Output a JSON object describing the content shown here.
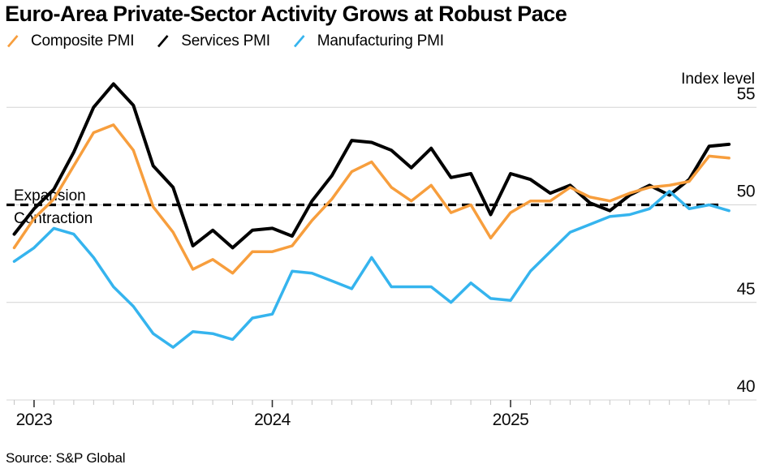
{
  "title": "Euro-Area Private-Sector Activity Grows at Robust Pace",
  "legend": {
    "items": [
      {
        "label": "Composite PMI",
        "color": "#F79E3D"
      },
      {
        "label": "Services PMI",
        "color": "#000000"
      },
      {
        "label": "Manufacturing PMI",
        "color": "#35B4EE"
      }
    ]
  },
  "source": "Source: S&P Global",
  "chart_data": {
    "type": "line",
    "title": "Euro-Area Private-Sector Activity Grows at Robust Pace",
    "xlabel": "",
    "ylabel": "Index level",
    "y_ticks": [
      55,
      50,
      45,
      40
    ],
    "ylim": [
      40,
      57.3
    ],
    "grid": "horizontal",
    "legend_position": "top",
    "x_tick_labels": [
      "2023",
      "2024",
      "2025"
    ],
    "reference_line": {
      "value": 50,
      "style": "dashed",
      "color": "#000000",
      "label_above": "Expansion",
      "label_below": "Contraction"
    },
    "months": [
      "2022-11",
      "2022-12",
      "2023-01",
      "2023-02",
      "2023-03",
      "2023-04",
      "2023-05",
      "2023-06",
      "2023-07",
      "2023-08",
      "2023-09",
      "2023-10",
      "2023-11",
      "2023-12",
      "2024-01",
      "2024-02",
      "2024-03",
      "2024-04",
      "2024-05",
      "2024-06",
      "2024-07",
      "2024-08",
      "2024-09",
      "2024-10",
      "2024-11",
      "2024-12",
      "2025-01",
      "2025-02",
      "2025-03",
      "2025-04",
      "2025-05",
      "2025-06",
      "2025-07",
      "2025-08",
      "2025-09",
      "2025-10",
      "2025-11"
    ],
    "series": [
      {
        "name": "Services PMI",
        "color": "#000000",
        "values": [
          48.5,
          49.8,
          50.8,
          52.7,
          55.0,
          56.2,
          55.1,
          52.0,
          50.9,
          47.9,
          48.7,
          47.8,
          48.7,
          48.8,
          48.4,
          50.2,
          51.5,
          53.3,
          53.2,
          52.8,
          51.9,
          52.9,
          51.4,
          51.6,
          49.5,
          51.6,
          51.3,
          50.6,
          51.0,
          50.1,
          49.7,
          50.5,
          51.0,
          50.5,
          51.3,
          53.0,
          53.1
        ]
      },
      {
        "name": "Composite PMI",
        "color": "#F79E3D",
        "values": [
          47.8,
          49.3,
          50.3,
          52.0,
          53.7,
          54.1,
          52.8,
          49.9,
          48.6,
          46.7,
          47.2,
          46.5,
          47.6,
          47.6,
          47.9,
          49.2,
          50.3,
          51.7,
          52.2,
          50.9,
          50.2,
          51.0,
          49.6,
          50.0,
          48.3,
          49.6,
          50.2,
          50.2,
          50.9,
          50.4,
          50.2,
          50.6,
          50.9,
          51.0,
          51.2,
          52.5,
          52.4
        ]
      },
      {
        "name": "Manufacturing PMI",
        "color": "#35B4EE",
        "values": [
          47.1,
          47.8,
          48.8,
          48.5,
          47.3,
          45.8,
          44.8,
          43.4,
          42.7,
          43.5,
          43.4,
          43.1,
          44.2,
          44.4,
          46.6,
          46.5,
          46.1,
          45.7,
          47.3,
          45.8,
          45.8,
          45.8,
          45.0,
          46.0,
          45.2,
          45.1,
          46.6,
          47.6,
          48.6,
          49.0,
          49.4,
          49.5,
          49.8,
          50.7,
          49.8,
          50.0,
          49.7
        ]
      }
    ]
  }
}
